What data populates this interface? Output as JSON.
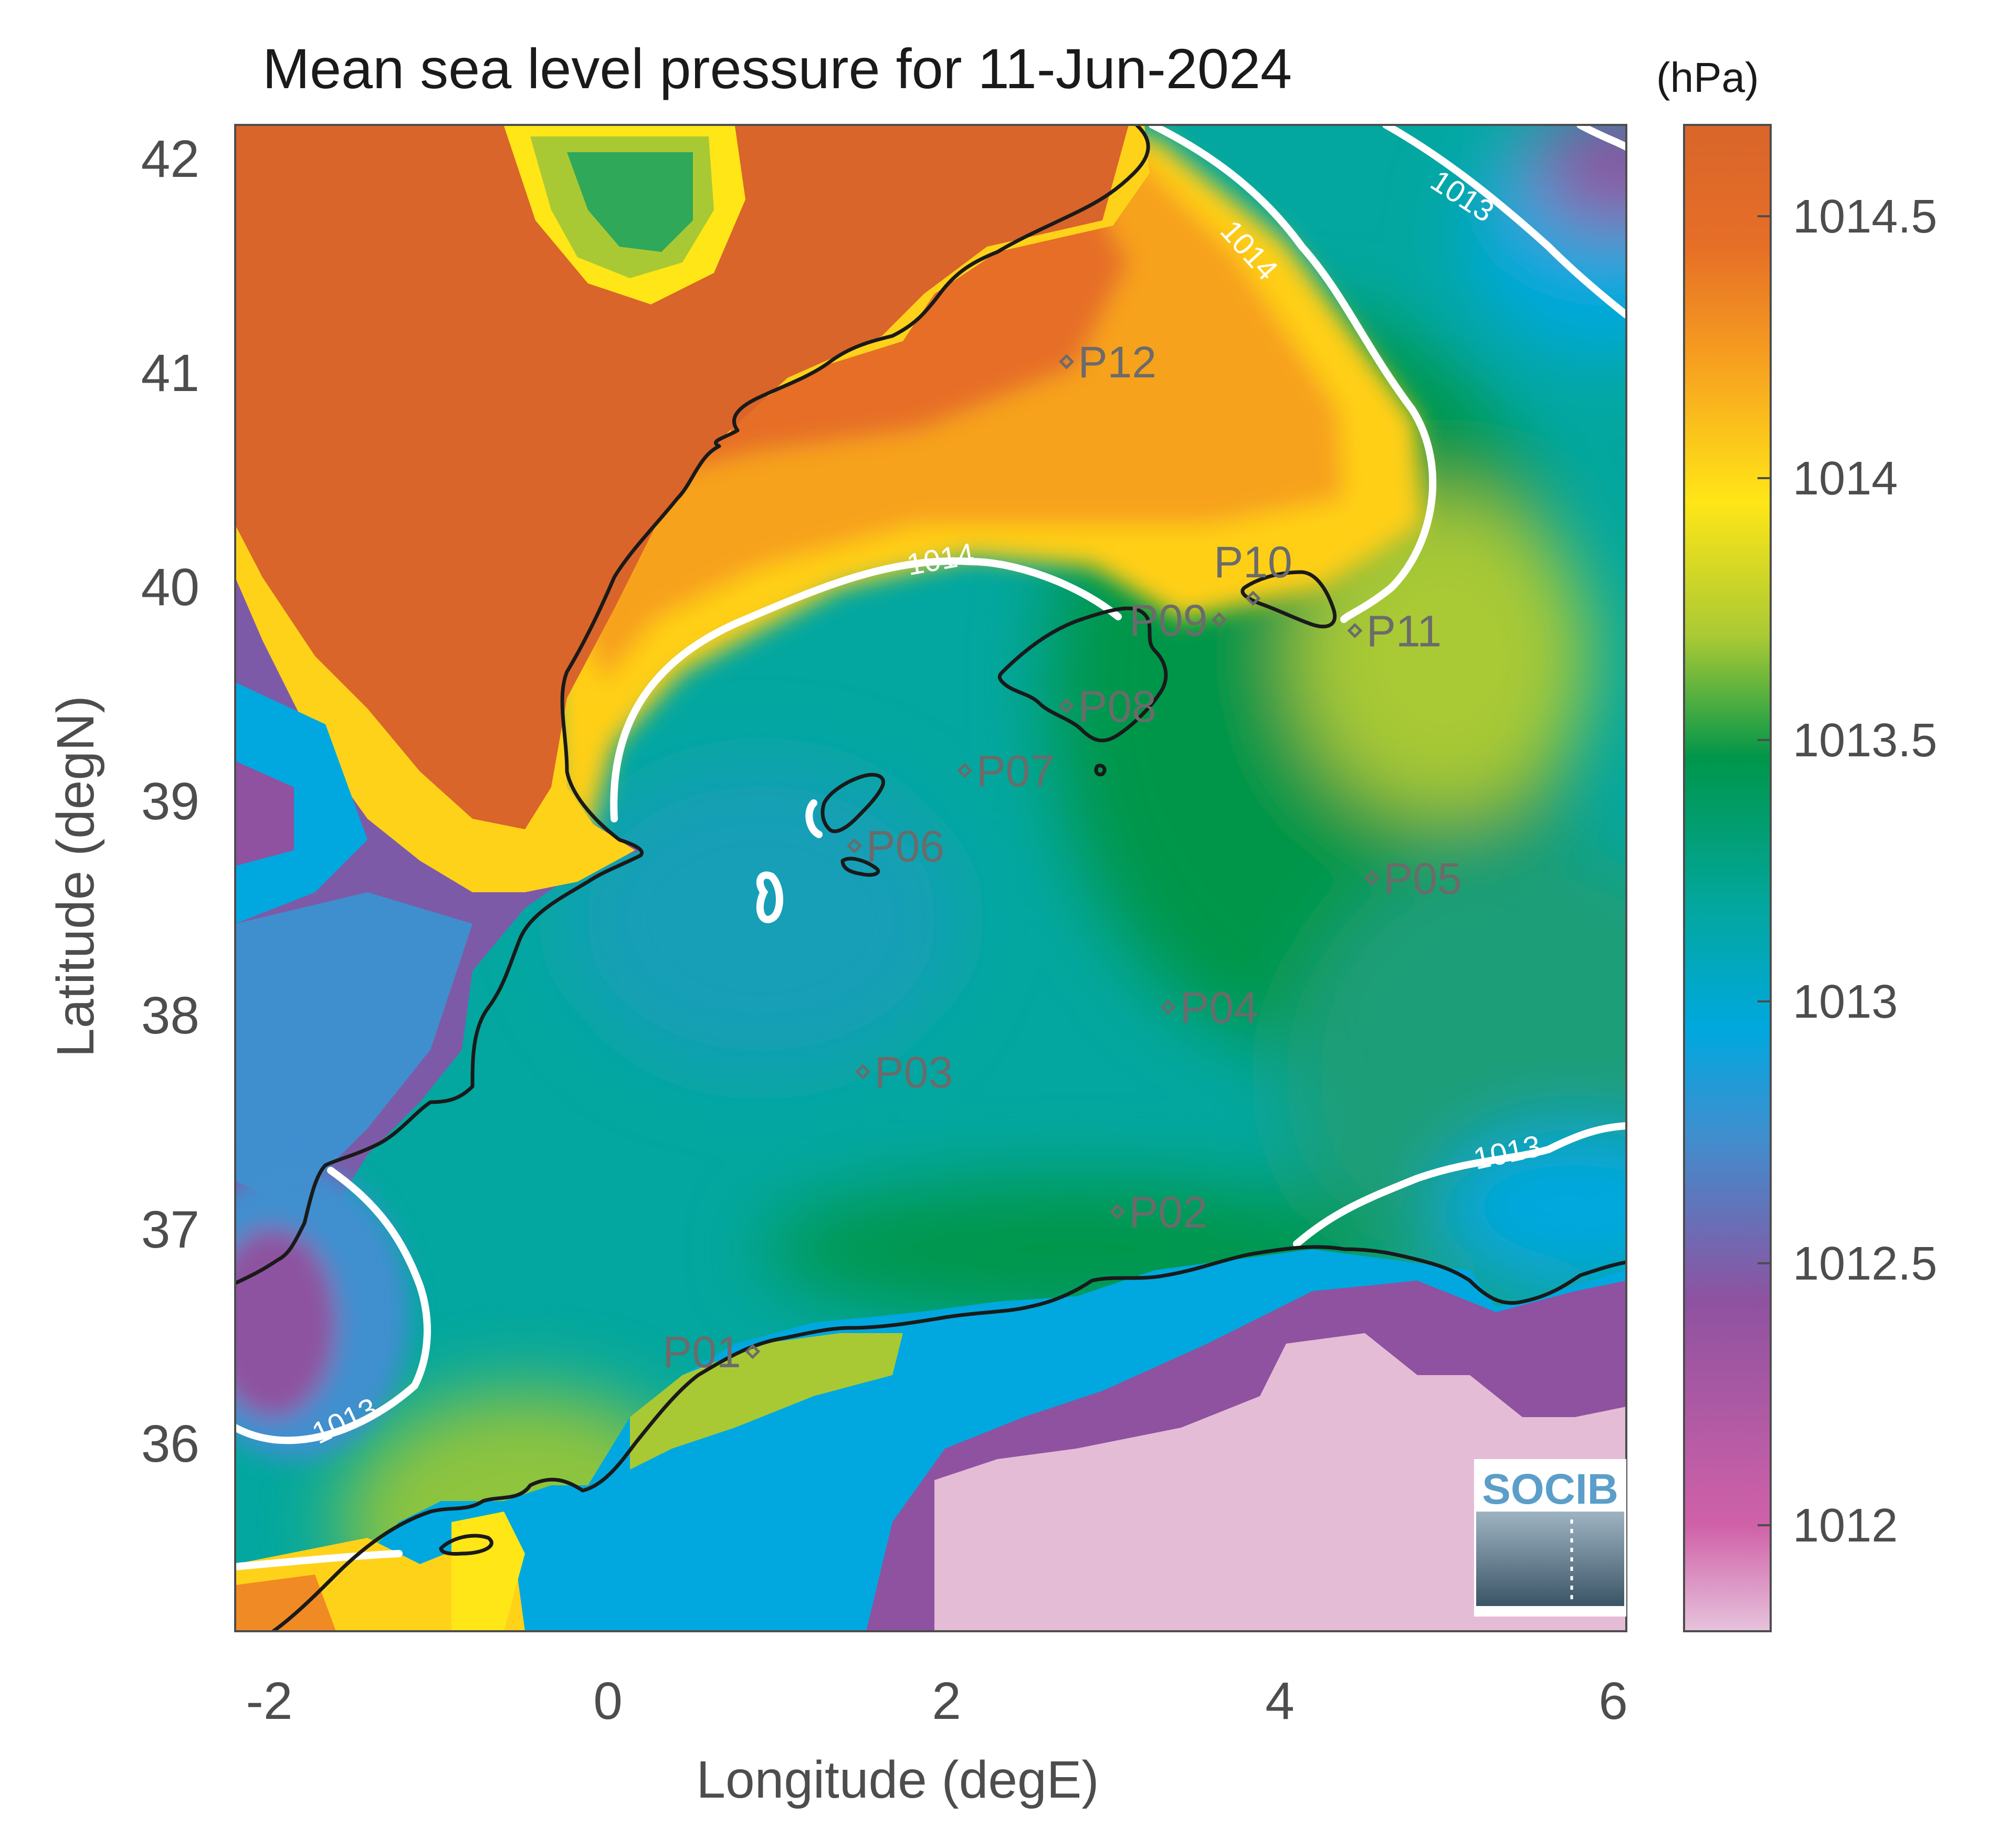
{
  "title": "Mean sea level pressure for 11-Jun-2024",
  "units": "(hPa)",
  "xlabel": "Longitude (degE)",
  "ylabel": "Latitude (degN)",
  "x_ticks": [
    "-2",
    "0",
    "2",
    "4",
    "6"
  ],
  "y_ticks": [
    "42",
    "41",
    "40",
    "39",
    "38",
    "37",
    "36"
  ],
  "colorbar_ticks": [
    "1014.5",
    "1014",
    "1013.5",
    "1013",
    "1012.5",
    "1012"
  ],
  "logo_text": "SOCIB",
  "contour_labels": [
    "1014",
    "1014",
    "1013",
    "1013",
    "1013"
  ],
  "points": [
    {
      "label": "P01",
      "lon": 0.85,
      "lat": 36.5
    },
    {
      "label": "P02",
      "lon": 3.0,
      "lat": 37.15
    },
    {
      "label": "P03",
      "lon": 1.5,
      "lat": 37.8
    },
    {
      "label": "P04",
      "lon": 3.3,
      "lat": 38.1
    },
    {
      "label": "P05",
      "lon": 4.5,
      "lat": 38.7
    },
    {
      "label": "P06",
      "lon": 1.45,
      "lat": 38.85
    },
    {
      "label": "P07",
      "lon": 2.1,
      "lat": 39.2
    },
    {
      "label": "P08",
      "lon": 2.7,
      "lat": 39.5
    },
    {
      "label": "P09",
      "lon": 3.6,
      "lat": 39.9
    },
    {
      "label": "P10",
      "lon": 3.8,
      "lat": 40.0
    },
    {
      "label": "P11",
      "lon": 4.4,
      "lat": 39.85
    },
    {
      "label": "P12",
      "lon": 2.7,
      "lat": 41.1
    }
  ],
  "chart_data": {
    "type": "heatmap",
    "title": "Mean sea level pressure for 11-Jun-2024",
    "xlabel": "Longitude (degE)",
    "ylabel": "Latitude (degN)",
    "xlim": [
      -2.2,
      6
    ],
    "ylim": [
      35.2,
      42.2
    ],
    "clim": [
      1011.8,
      1014.7
    ],
    "colorbar_ticks": [
      1012,
      1012.5,
      1013,
      1013.5,
      1014,
      1014.5
    ],
    "contour_levels": [
      1013,
      1014
    ],
    "colormap": [
      "#e6c3dc",
      "#d061a8",
      "#8e52a0",
      "#3f8fcf",
      "#00a8df",
      "#03a79f",
      "#00964a",
      "#a9c934",
      "#ffe617",
      "#f7a21f",
      "#e66e27",
      "#d9652a"
    ],
    "land_color": "#d9652a",
    "low_land_color": "#e4bcd6",
    "coastline_color": "#1a1a1a",
    "contour_color": "#ffffff",
    "point_marker_color": "#6b6b6b"
  }
}
